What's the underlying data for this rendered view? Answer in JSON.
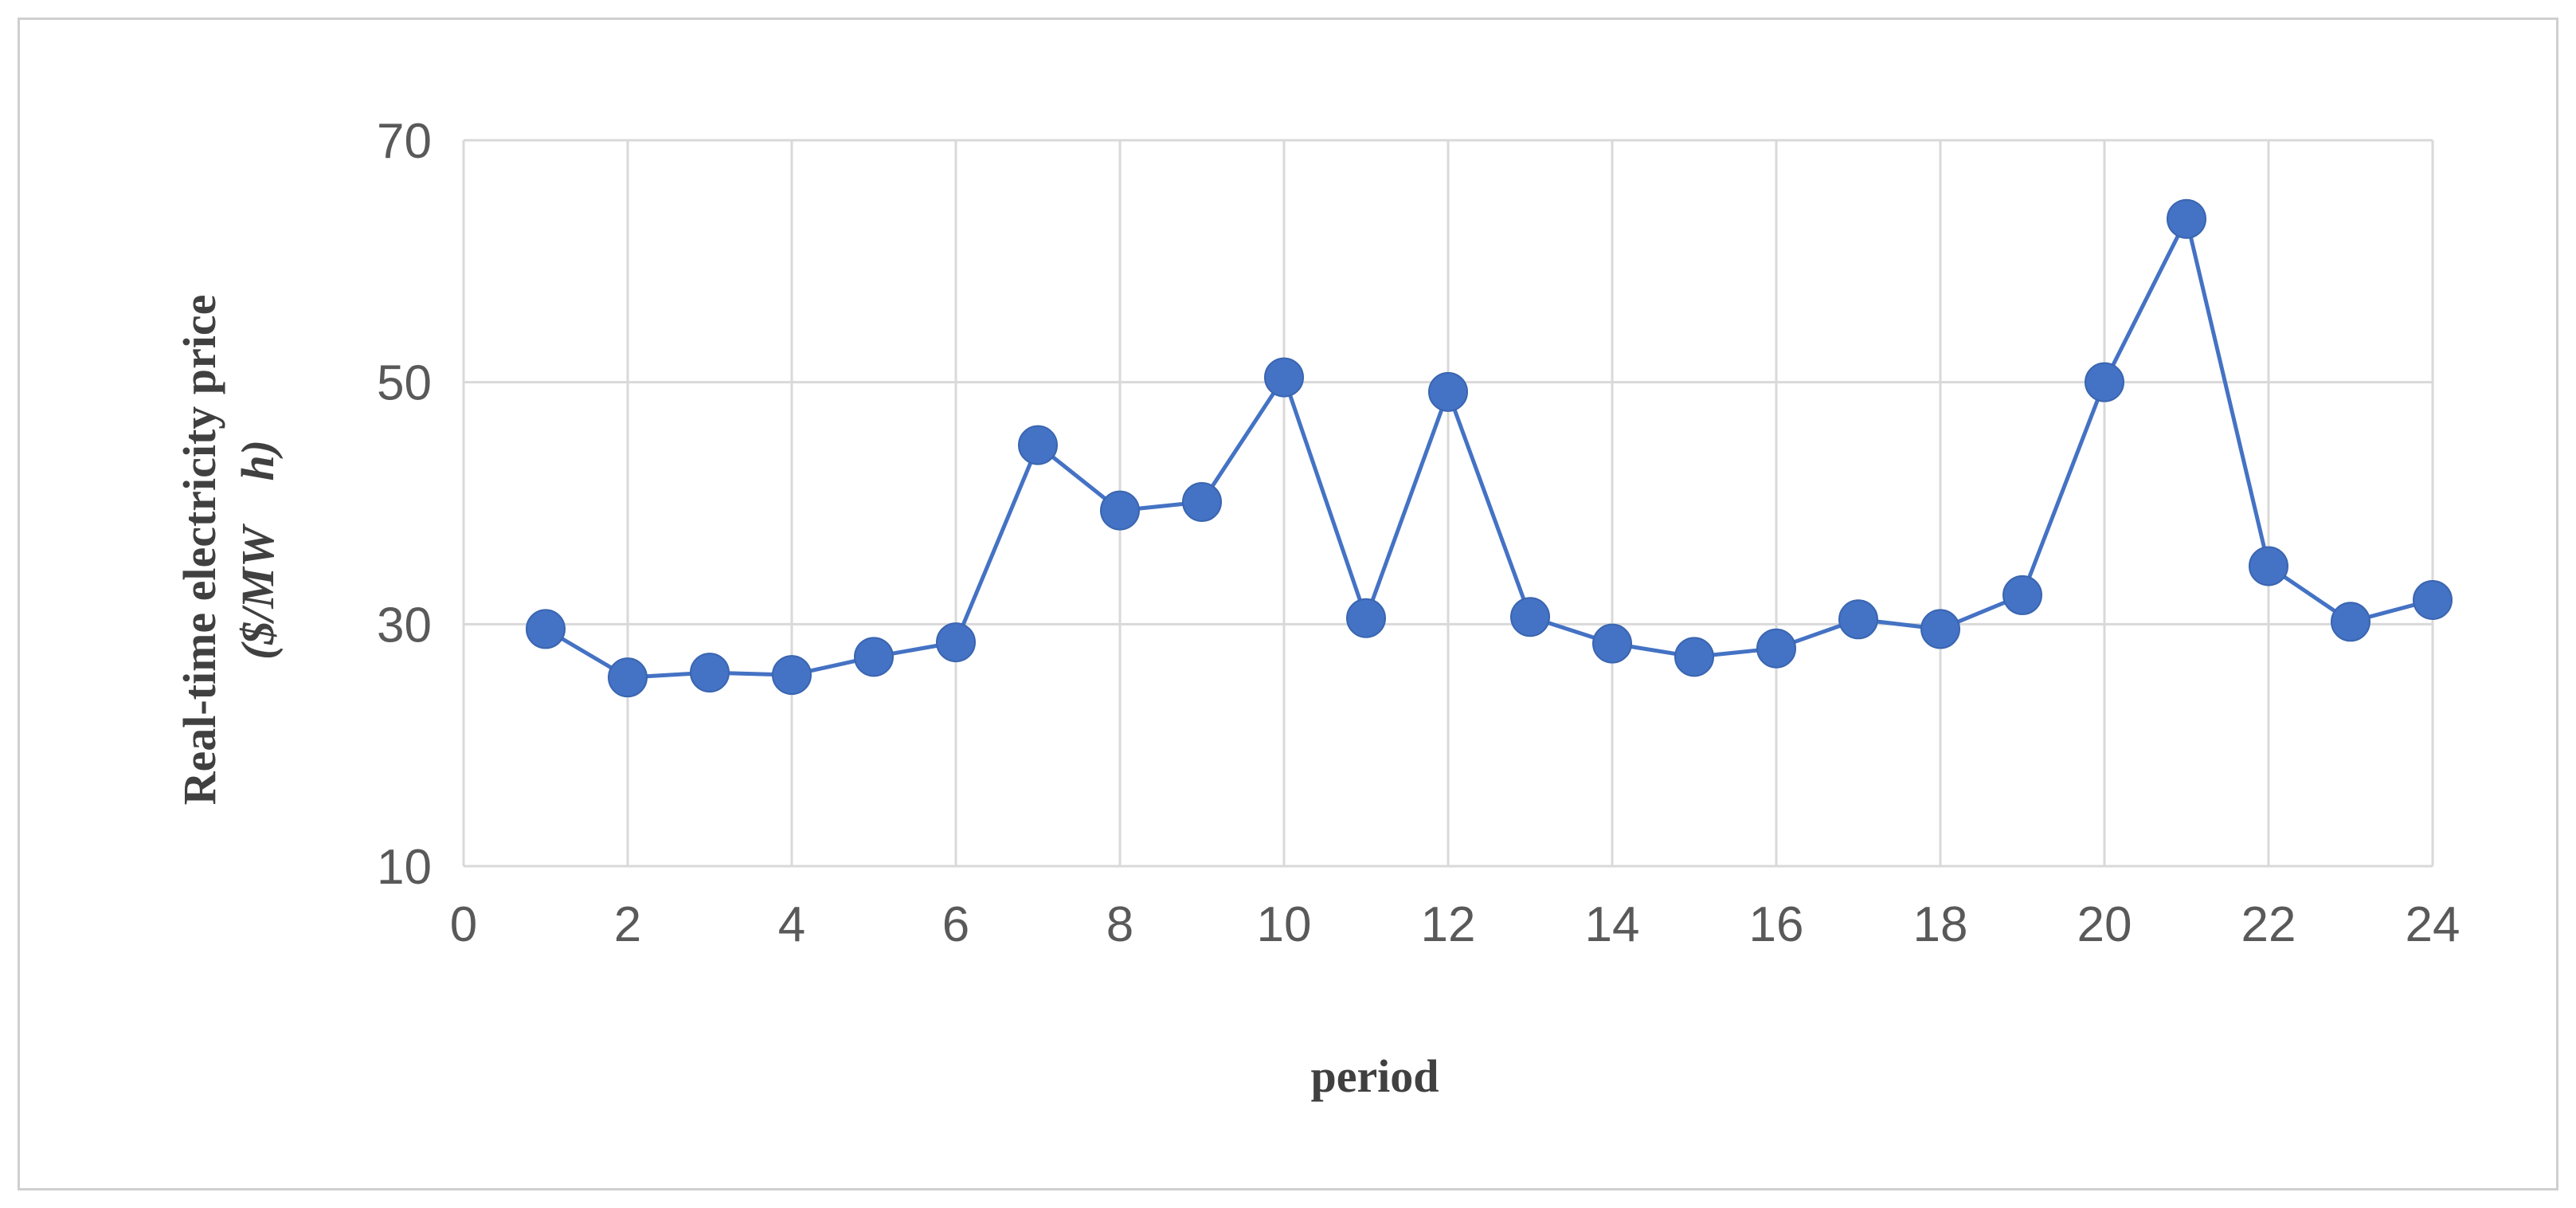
{
  "chart_data": {
    "type": "line",
    "title": "",
    "xlabel": "period",
    "ylabel": "Real-time electricity price",
    "ylabel_unit": "($/MW　h)",
    "xlim": [
      0,
      24
    ],
    "ylim": [
      10,
      70
    ],
    "x_ticks": [
      0,
      2,
      4,
      6,
      8,
      10,
      12,
      14,
      16,
      18,
      20,
      22,
      24
    ],
    "y_ticks": [
      10,
      30,
      50,
      70
    ],
    "x_tick_labels": [
      "0",
      "2",
      "4",
      "6",
      "8",
      "10",
      "12",
      "14",
      "16",
      "18",
      "20",
      "22",
      "24"
    ],
    "y_tick_labels": [
      "10",
      "30",
      "50",
      "70"
    ],
    "grid": true,
    "legend": "none",
    "series": [
      {
        "color": "#4472c4",
        "marker": "circle",
        "x": [
          1,
          2,
          3,
          4,
          5,
          6,
          7,
          8,
          9,
          10,
          11,
          12,
          13,
          14,
          15,
          16,
          17,
          18,
          19,
          20,
          21,
          22,
          23,
          24
        ],
        "y": [
          29.6,
          25.6,
          26.0,
          25.8,
          27.3,
          28.5,
          44.8,
          39.4,
          40.1,
          50.4,
          30.5,
          49.2,
          30.6,
          28.4,
          27.3,
          28.0,
          30.4,
          29.6,
          32.4,
          50.0,
          63.5,
          34.8,
          30.2,
          32.0
        ]
      }
    ]
  }
}
